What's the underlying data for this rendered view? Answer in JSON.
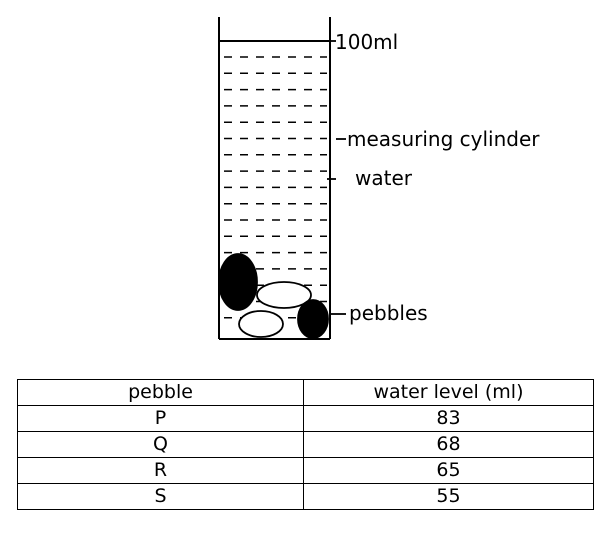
{
  "diagram": {
    "labels": {
      "volume_mark": "100ml",
      "cylinder": "measuring cylinder",
      "water": "water",
      "pebbles": "pebbles"
    }
  },
  "table": {
    "headers": [
      "pebble",
      "water level (ml)"
    ],
    "rows": [
      {
        "pebble": "P",
        "water_level": "83"
      },
      {
        "pebble": "Q",
        "water_level": "68"
      },
      {
        "pebble": "R",
        "water_level": "65"
      },
      {
        "pebble": "S",
        "water_level": "55"
      }
    ]
  },
  "colors": {
    "ink": "#000000",
    "background": "#ffffff"
  }
}
